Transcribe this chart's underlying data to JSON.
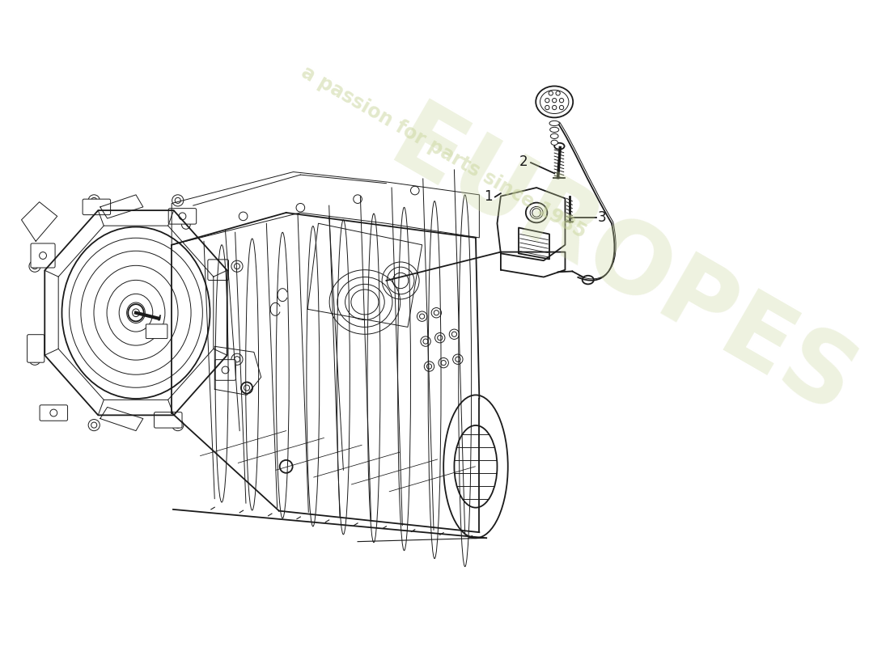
{
  "background_color": "#ffffff",
  "watermark_text1": "EUROPES",
  "watermark_text2": "a passion for parts since 1985",
  "watermark_color": "#c8d49a",
  "watermark_alpha": 0.45,
  "label1": "1",
  "label2": "2",
  "label3": "3",
  "line_color": "#1a1a1a",
  "line_width": 1.3,
  "thin_line": 0.7,
  "fig_width": 11.0,
  "fig_height": 8.0,
  "dpi": 100
}
